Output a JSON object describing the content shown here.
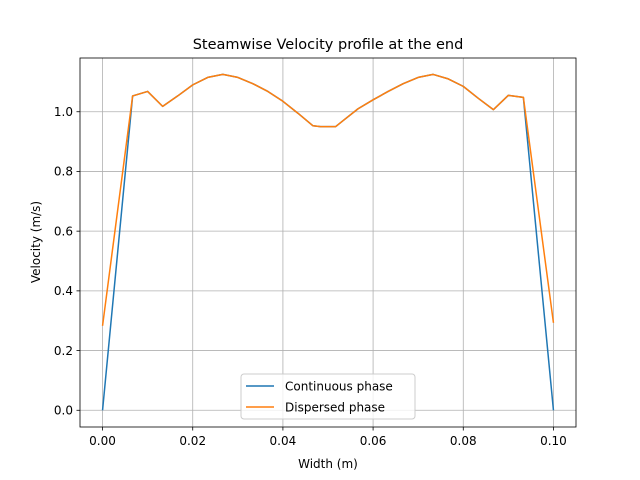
{
  "chart_data": {
    "type": "line",
    "title": "Steamwise Velocity profile at the end",
    "xlabel": "Width (m)",
    "ylabel": "Velocity (m/s)",
    "xlim": [
      -0.005,
      0.105
    ],
    "ylim": [
      -0.056,
      1.18
    ],
    "grid": true,
    "legend": "lower center",
    "xticks": [
      0.0,
      0.02,
      0.04,
      0.06,
      0.08,
      0.1
    ],
    "xtick_labels": [
      "0.00",
      "0.02",
      "0.04",
      "0.06",
      "0.08",
      "0.10"
    ],
    "yticks": [
      0.0,
      0.2,
      0.4,
      0.6,
      0.8,
      1.0
    ],
    "ytick_labels": [
      "0.0",
      "0.2",
      "0.4",
      "0.6",
      "0.8",
      "1.0"
    ],
    "series": [
      {
        "name": "Continuous phase",
        "color": "#1f77b4",
        "x": [
          0.0,
          0.00667,
          0.01,
          0.01333,
          0.01667,
          0.02,
          0.02333,
          0.02667,
          0.03,
          0.03333,
          0.03667,
          0.04,
          0.04333,
          0.04667,
          0.04833,
          0.05167,
          0.05333,
          0.05667,
          0.06,
          0.06333,
          0.06667,
          0.07,
          0.07333,
          0.07667,
          0.08,
          0.08333,
          0.08667,
          0.09,
          0.09333,
          0.1
        ],
        "y": [
          0.0,
          1.053,
          1.068,
          1.018,
          1.053,
          1.09,
          1.115,
          1.125,
          1.115,
          1.094,
          1.068,
          1.035,
          0.995,
          0.953,
          0.95,
          0.95,
          0.97,
          1.01,
          1.04,
          1.068,
          1.094,
          1.115,
          1.125,
          1.11,
          1.085,
          1.045,
          1.007,
          1.055,
          1.048,
          0.0
        ]
      },
      {
        "name": "Dispersed phase",
        "color": "#ff7f0e",
        "x": [
          0.0,
          0.00667,
          0.01,
          0.01333,
          0.01667,
          0.02,
          0.02333,
          0.02667,
          0.03,
          0.03333,
          0.03667,
          0.04,
          0.04333,
          0.04667,
          0.04833,
          0.05167,
          0.05333,
          0.05667,
          0.06,
          0.06333,
          0.06667,
          0.07,
          0.07333,
          0.07667,
          0.08,
          0.08333,
          0.08667,
          0.09,
          0.09333,
          0.1
        ],
        "y": [
          0.283,
          1.053,
          1.068,
          1.018,
          1.053,
          1.09,
          1.115,
          1.125,
          1.115,
          1.094,
          1.068,
          1.035,
          0.995,
          0.953,
          0.95,
          0.95,
          0.97,
          1.01,
          1.04,
          1.068,
          1.094,
          1.115,
          1.125,
          1.11,
          1.085,
          1.045,
          1.007,
          1.055,
          1.048,
          0.293
        ]
      }
    ]
  }
}
